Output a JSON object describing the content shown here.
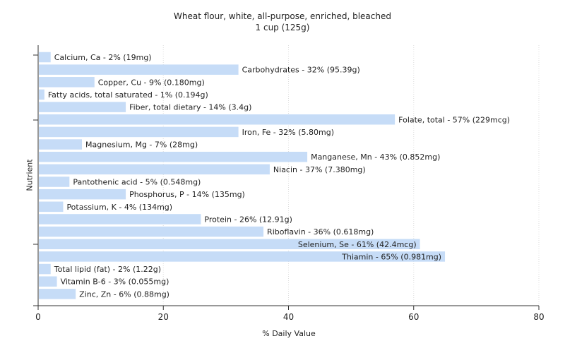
{
  "chart_data": {
    "type": "bar",
    "orientation": "horizontal",
    "title": "Wheat flour, white, all-purpose, enriched, bleached",
    "subtitle": "1 cup (125g)",
    "xlabel": "% Daily Value",
    "ylabel": "Nutrient",
    "xlim": [
      0,
      80
    ],
    "xticks": [
      0,
      20,
      40,
      60,
      80
    ],
    "grid": true,
    "bar_color": "#c6dcf7",
    "bars": [
      {
        "label": "Calcium, Ca - 2% (19mg)",
        "value": 2
      },
      {
        "label": "Carbohydrates - 32% (95.39g)",
        "value": 32
      },
      {
        "label": "Copper, Cu - 9% (0.180mg)",
        "value": 9
      },
      {
        "label": "Fatty acids, total saturated - 1% (0.194g)",
        "value": 1
      },
      {
        "label": "Fiber, total dietary - 14% (3.4g)",
        "value": 14
      },
      {
        "label": "Folate, total - 57% (229mcg)",
        "value": 57
      },
      {
        "label": "Iron, Fe - 32% (5.80mg)",
        "value": 32
      },
      {
        "label": "Magnesium, Mg - 7% (28mg)",
        "value": 7
      },
      {
        "label": "Manganese, Mn - 43% (0.852mg)",
        "value": 43
      },
      {
        "label": "Niacin - 37% (7.380mg)",
        "value": 37
      },
      {
        "label": "Pantothenic acid - 5% (0.548mg)",
        "value": 5
      },
      {
        "label": "Phosphorus, P - 14% (135mg)",
        "value": 14
      },
      {
        "label": "Potassium, K - 4% (134mg)",
        "value": 4
      },
      {
        "label": "Protein - 26% (12.91g)",
        "value": 26
      },
      {
        "label": "Riboflavin - 36% (0.618mg)",
        "value": 36
      },
      {
        "label": "Selenium, Se - 61% (42.4mcg)",
        "value": 61
      },
      {
        "label": "Thiamin - 65% (0.981mg)",
        "value": 65
      },
      {
        "label": "Total lipid (fat) - 2% (1.22g)",
        "value": 2
      },
      {
        "label": "Vitamin B-6 - 3% (0.055mg)",
        "value": 3
      },
      {
        "label": "Zinc, Zn - 6% (0.88mg)",
        "value": 6
      }
    ]
  }
}
